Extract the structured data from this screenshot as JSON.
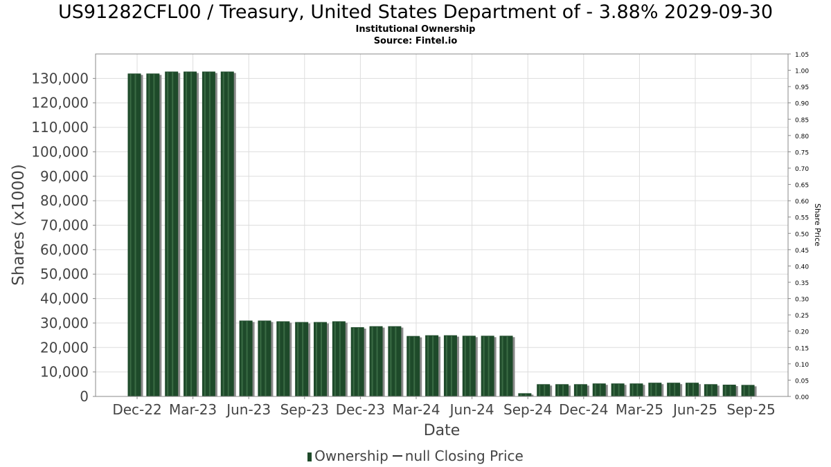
{
  "title": "US91282CFL00 / Treasury, United States Department of - 3.88% 2029-09-30",
  "subtitle": "Institutional Ownership",
  "source": "Source: Fintel.io",
  "legend": {
    "ownership": "Ownership",
    "price": "null Closing Price"
  },
  "colors": {
    "bar": "#1e4a2a",
    "bar_highlight": "#3a6b44",
    "shadow": "#8a8a8a",
    "grid": "#dddddd",
    "frame": "#888888"
  },
  "chart_data": {
    "type": "bar",
    "xlabel": "Date",
    "ylabel": "Shares (x1000)",
    "y2label": "Share Price",
    "ylim": [
      0,
      140000
    ],
    "y2lim": [
      0,
      1.05
    ],
    "grid": true,
    "legend_position": "bottom",
    "x_tick_labels": [
      "Dec-22",
      "Mar-23",
      "Jun-23",
      "Sep-23",
      "Dec-23",
      "Mar-24",
      "Jun-24",
      "Sep-24",
      "Dec-24",
      "Mar-25",
      "Jun-25",
      "Sep-25"
    ],
    "y_tick_labels": [
      "0",
      "10,000",
      "20,000",
      "30,000",
      "40,000",
      "50,000",
      "60,000",
      "70,000",
      "80,000",
      "90,000",
      "100,000",
      "110,000",
      "120,000",
      "130,000"
    ],
    "y2_tick_labels": [
      "0.00",
      "0.05",
      "0.10",
      "0.15",
      "0.20",
      "0.25",
      "0.30",
      "0.35",
      "0.40",
      "0.45",
      "0.50",
      "0.55",
      "0.60",
      "0.65",
      "0.70",
      "0.75",
      "0.80",
      "0.85",
      "0.90",
      "0.95",
      "1.00",
      "1.05"
    ],
    "series": [
      {
        "name": "Ownership",
        "values": [
          132000,
          132000,
          132800,
          132800,
          132800,
          132800,
          31000,
          31000,
          30700,
          30400,
          30400,
          30700,
          28300,
          28700,
          28700,
          24700,
          25000,
          25000,
          24800,
          24800,
          24800,
          1300,
          5000,
          5000,
          5000,
          5300,
          5300,
          5300,
          5600,
          5600,
          5600,
          5000,
          4800,
          4700
        ]
      }
    ]
  }
}
